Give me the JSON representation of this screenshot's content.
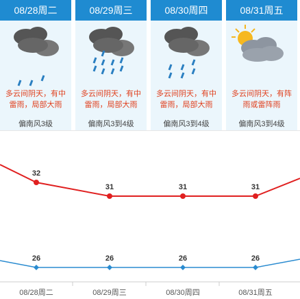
{
  "days": [
    {
      "date": "08/28周二",
      "desc_line1": "多云间阴天，有中",
      "desc_line2": "雷雨，局部大雨",
      "wind": "偏南风3级",
      "icon": "cloud-light-rain-icon"
    },
    {
      "date": "08/29周三",
      "desc_line1": "多云间阴天，有中",
      "desc_line2": "雷雨，局部大雨",
      "wind": "偏南风3到4级",
      "icon": "cloud-heavy-rain-icon"
    },
    {
      "date": "08/30周四",
      "desc_line1": "多云间阴天，有中",
      "desc_line2": "雷雨，局部大雨",
      "wind": "偏南风3到4级",
      "icon": "cloud-rain-icon"
    },
    {
      "date": "08/31周五",
      "desc_line1": "多云间阴天，有阵",
      "desc_line2": "雨或雷阵雨",
      "wind": "偏南风3到4级",
      "icon": "sun-cloud-icon"
    }
  ],
  "colors": {
    "header": "#1f8bd1",
    "card_bg": "#ebf6fc",
    "desc": "#e0411f",
    "high": "#e02020",
    "low": "#2a8bd0"
  },
  "chart_data": {
    "type": "line",
    "categories": [
      "08/28周二",
      "08/29周三",
      "08/30周四",
      "08/31周五"
    ],
    "series": [
      {
        "values": [
          32,
          31,
          31,
          31
        ]
      },
      {
        "values": [
          26,
          26,
          26,
          26
        ]
      }
    ],
    "high_labels": [
      "32",
      "31",
      "31",
      "31"
    ],
    "low_labels": [
      "26",
      "26",
      "26",
      "26"
    ],
    "ylim": [
      24,
      34
    ],
    "grid": false,
    "legend": "none"
  }
}
